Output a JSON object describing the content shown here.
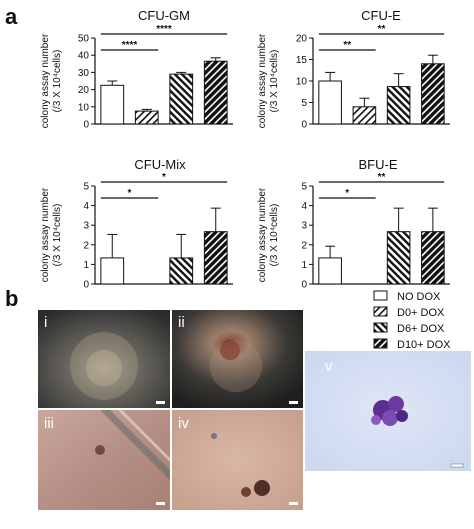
{
  "figure": {
    "panel_a_letter": "a",
    "panel_b_letter": "b",
    "micrograph_labels": [
      "i",
      "ii",
      "iii",
      "iv",
      "v"
    ]
  },
  "legend": [
    {
      "name": "NO DOX",
      "pattern": "white"
    },
    {
      "name": "D0+ DOX",
      "pattern": "hatch-light"
    },
    {
      "name": "D6+ DOX",
      "pattern": "hatch-mid"
    },
    {
      "name": "D10+ DOX",
      "pattern": "hatch-dark"
    }
  ],
  "chart_data": [
    {
      "type": "bar",
      "title": "CFU-GM",
      "ylabel": "colony assay number",
      "ylabel2": "(/3 X 10⁴cells)",
      "categories": [
        "NO DOX",
        "D0+ DOX",
        "D6+ DOX",
        "D10+ DOX"
      ],
      "values": [
        22.5,
        7.5,
        29,
        36.5
      ],
      "errors": [
        2.5,
        1,
        1,
        2
      ],
      "ylim": [
        0,
        50
      ],
      "yticks": [
        "0",
        "10",
        "20",
        "30",
        "40",
        "50"
      ],
      "significance": [
        {
          "from": 0,
          "to": 1,
          "label": "****"
        },
        {
          "from": 0,
          "to": 3,
          "label": "****"
        }
      ]
    },
    {
      "type": "bar",
      "title": "CFU-E",
      "ylabel": "colony assay number",
      "ylabel2": "(/3 X 10⁴cells)",
      "categories": [
        "NO DOX",
        "D0+ DOX",
        "D6+ DOX",
        "D10+ DOX"
      ],
      "values": [
        10,
        4,
        8.7,
        14
      ],
      "errors": [
        2,
        2,
        3,
        2
      ],
      "ylim": [
        0,
        20
      ],
      "yticks": [
        "0",
        "5",
        "10",
        "15",
        "20"
      ],
      "significance": [
        {
          "from": 0,
          "to": 1,
          "label": "**"
        },
        {
          "from": 0,
          "to": 3,
          "label": "**"
        }
      ]
    },
    {
      "type": "bar",
      "title": "CFU-Mix",
      "ylabel": "colony assay number",
      "ylabel2": "(/3 X 10⁴cells)",
      "categories": [
        "NO DOX",
        "D0+ DOX",
        "D6+ DOX",
        "D10+ DOX"
      ],
      "values": [
        1.33,
        0,
        1.33,
        2.67
      ],
      "errors": [
        1.2,
        0,
        1.2,
        1.2
      ],
      "ylim": [
        0,
        5
      ],
      "yticks": [
        "0",
        "1",
        "2",
        "3",
        "4",
        "5"
      ],
      "significance": [
        {
          "from": 0,
          "to": 1,
          "label": "*"
        },
        {
          "from": 0,
          "to": 3,
          "label": "*"
        }
      ]
    },
    {
      "type": "bar",
      "title": "BFU-E",
      "ylabel": "colony assay number",
      "ylabel2": "(/3 X 10⁴cells)",
      "categories": [
        "NO DOX",
        "D0+ DOX",
        "D6+ DOX",
        "D10+ DOX"
      ],
      "values": [
        1.33,
        0,
        2.67,
        2.67
      ],
      "errors": [
        0.6,
        0,
        1.2,
        1.2
      ],
      "ylim": [
        0,
        5
      ],
      "yticks": [
        "0",
        "1",
        "2",
        "3",
        "4",
        "5"
      ],
      "significance": [
        {
          "from": 0,
          "to": 1,
          "label": "*"
        },
        {
          "from": 0,
          "to": 3,
          "label": "**"
        }
      ]
    }
  ]
}
